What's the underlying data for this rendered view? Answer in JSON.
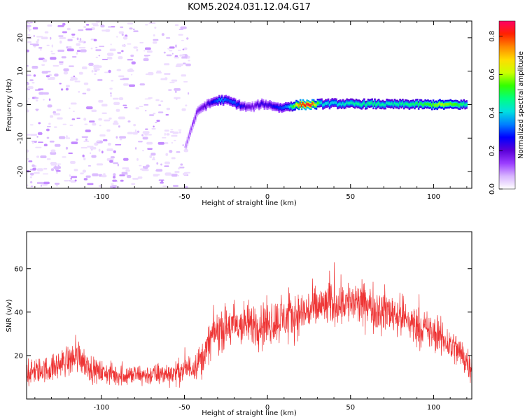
{
  "title": "KOM5.2024.031.12.04.G17",
  "chart_data": [
    {
      "type": "heatmap",
      "xlabel": "Height of straight line (km)",
      "ylabel": "Frequency (Hz)",
      "xlim": [
        -145,
        123
      ],
      "ylim": [
        -25,
        25
      ],
      "xticks": [
        -100,
        -50,
        0,
        50,
        100
      ],
      "xtick_labels": [
        "-100",
        "-50",
        "0",
        "50",
        "100"
      ],
      "yticks": [
        -20,
        -10,
        0,
        10,
        20
      ],
      "ytick_labels": [
        "-20",
        "-10",
        "0",
        "10",
        "20"
      ],
      "grid": false,
      "colorbar": {
        "label": "Normalized spectral amplitude",
        "range": [
          0,
          0.88
        ],
        "ticks": [
          0.0,
          0.2,
          0.4,
          0.6,
          0.8
        ],
        "tick_labels": [
          "0.0",
          "0.2",
          "0.4",
          "0.6",
          "0.8"
        ],
        "colormap": [
          "#ffffff",
          "#d8b4ff",
          "#9a3cff",
          "#5a00d8",
          "#0000ff",
          "#0080ff",
          "#00e0e0",
          "#00ff80",
          "#33ff00",
          "#ccff00",
          "#ffdd00",
          "#ff8800",
          "#ff2200",
          "#ff0066"
        ]
      },
      "trace": [
        {
          "x": -49,
          "y": -12,
          "a": 0.1
        },
        {
          "x": -47,
          "y": -9,
          "a": 0.12
        },
        {
          "x": -45,
          "y": -6,
          "a": 0.14
        },
        {
          "x": -43,
          "y": -3,
          "a": 0.16
        },
        {
          "x": -40,
          "y": -1,
          "a": 0.18
        },
        {
          "x": -36,
          "y": 0,
          "a": 0.22
        },
        {
          "x": -32,
          "y": 1,
          "a": 0.28
        },
        {
          "x": -28,
          "y": 1.4,
          "a": 0.36
        },
        {
          "x": -24,
          "y": 1.2,
          "a": 0.3
        },
        {
          "x": -20,
          "y": 0.5,
          "a": 0.32
        },
        {
          "x": -16,
          "y": -0.3,
          "a": 0.26
        },
        {
          "x": -12,
          "y": -0.8,
          "a": 0.2
        },
        {
          "x": -8,
          "y": -0.6,
          "a": 0.18
        },
        {
          "x": -4,
          "y": 0.2,
          "a": 0.24
        },
        {
          "x": 0,
          "y": 0,
          "a": 0.22
        },
        {
          "x": 4,
          "y": -0.4,
          "a": 0.26
        },
        {
          "x": 8,
          "y": -1,
          "a": 0.3
        },
        {
          "x": 12,
          "y": -0.6,
          "a": 0.34
        },
        {
          "x": 16,
          "y": -0.3,
          "a": 0.55
        },
        {
          "x": 20,
          "y": 0,
          "a": 0.8
        },
        {
          "x": 26,
          "y": 0,
          "a": 0.86
        },
        {
          "x": 32,
          "y": 0.2,
          "a": 0.42
        },
        {
          "x": 40,
          "y": 0.3,
          "a": 0.4
        },
        {
          "x": 48,
          "y": 0.2,
          "a": 0.44
        },
        {
          "x": 56,
          "y": 0.2,
          "a": 0.46
        },
        {
          "x": 64,
          "y": 0.2,
          "a": 0.48
        },
        {
          "x": 72,
          "y": 0.1,
          "a": 0.44
        },
        {
          "x": 80,
          "y": 0.1,
          "a": 0.46
        },
        {
          "x": 88,
          "y": 0.1,
          "a": 0.48
        },
        {
          "x": 96,
          "y": 0,
          "a": 0.52
        },
        {
          "x": 104,
          "y": 0,
          "a": 0.6
        },
        {
          "x": 112,
          "y": 0,
          "a": 0.55
        },
        {
          "x": 120,
          "y": 0,
          "a": 0.45
        }
      ]
    },
    {
      "type": "line",
      "xlabel": "Height of straight line (km)",
      "ylabel": "SNR (v/v)",
      "xlim": [
        -145,
        123
      ],
      "ylim": [
        0,
        77
      ],
      "xticks": [
        -100,
        -50,
        0,
        50,
        100
      ],
      "xtick_labels": [
        "-100",
        "-50",
        "0",
        "50",
        "100"
      ],
      "yticks": [
        20,
        40,
        60
      ],
      "ytick_labels": [
        "20",
        "40",
        "60"
      ],
      "grid": false,
      "color": "#ee3333",
      "envelope": {
        "x": [
          -145,
          -130,
          -120,
          -113,
          -105,
          -90,
          -70,
          -55,
          -45,
          -38,
          -33,
          -25,
          -15,
          0,
          15,
          30,
          45,
          60,
          75,
          90,
          105,
          115,
          123
        ],
        "mean": [
          12,
          14,
          18,
          20,
          13,
          11,
          11,
          12,
          15,
          20,
          30,
          33,
          34,
          35,
          38,
          42,
          45,
          43,
          40,
          34,
          28,
          22,
          15
        ],
        "spread": [
          8,
          9,
          10,
          12,
          8,
          7,
          7,
          8,
          9,
          11,
          14,
          15,
          15,
          15,
          15,
          15,
          15,
          15,
          14,
          13,
          12,
          12,
          11
        ]
      }
    }
  ]
}
